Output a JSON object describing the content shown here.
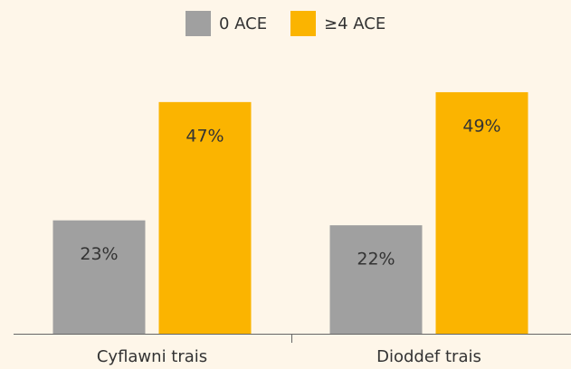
{
  "chart_data": {
    "type": "bar",
    "categories": [
      "Cyflawni trais",
      "Dioddef trais"
    ],
    "series": [
      {
        "name": "0 ACE",
        "color": "#a0a0a0",
        "values": [
          23,
          22
        ],
        "value_labels": [
          "23%",
          "22%"
        ]
      },
      {
        "name": "≥4 ACE",
        "color": "#fbb400",
        "values": [
          47,
          49
        ],
        "value_labels": [
          "47%",
          "49%"
        ]
      }
    ]
  }
}
